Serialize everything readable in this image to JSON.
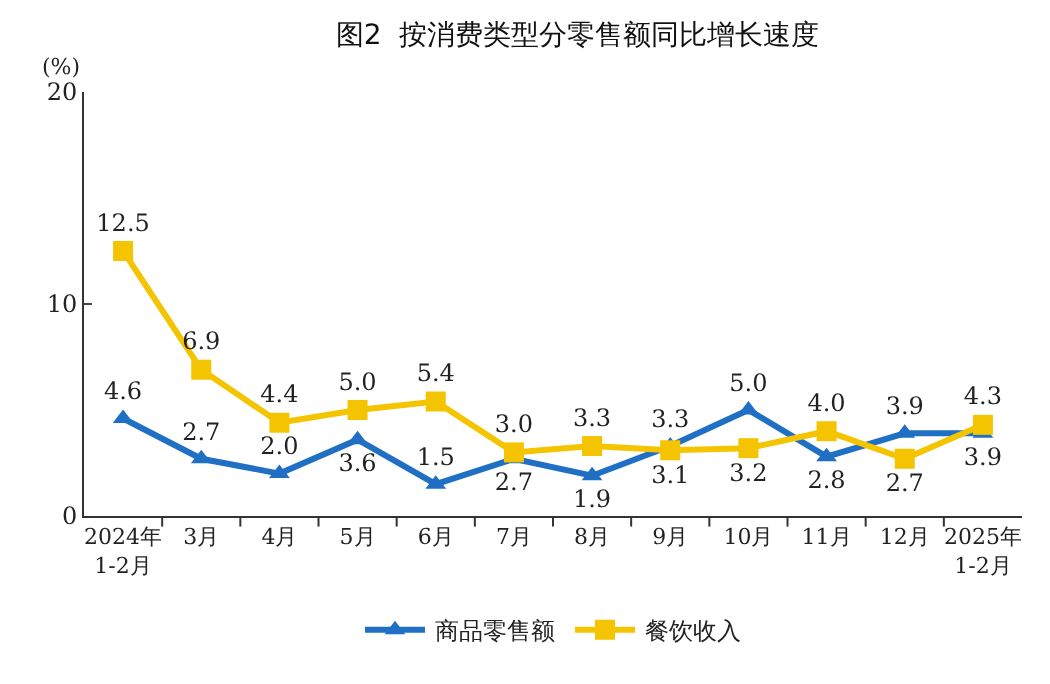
{
  "chart_data": {
    "type": "line",
    "title": "图2  按消费类型分零售额同比增长速度",
    "ylabel": "(%)",
    "categories": [
      "2024年\n1-2月",
      "3月",
      "4月",
      "5月",
      "6月",
      "7月",
      "8月",
      "9月",
      "10月",
      "11月",
      "12月",
      "2025年\n1-2月"
    ],
    "series": [
      {
        "name": "商品零售额",
        "color": "#1f6fc5",
        "marker": "triangle",
        "values": [
          4.6,
          2.7,
          2.0,
          3.6,
          1.5,
          2.7,
          1.9,
          3.3,
          5.0,
          2.8,
          3.9,
          3.9
        ],
        "value_labels": [
          "4.6",
          "2.7",
          "2.0",
          "3.6",
          "1.5",
          "2.7",
          "1.9",
          "3.3",
          "5.0",
          "2.8",
          "3.9",
          "3.9"
        ]
      },
      {
        "name": "餐饮收入",
        "color": "#f5c400",
        "marker": "square",
        "values": [
          12.5,
          6.9,
          4.4,
          5.0,
          5.4,
          3.0,
          3.3,
          3.1,
          3.2,
          4.0,
          2.7,
          4.3
        ],
        "value_labels": [
          "12.5",
          "6.9",
          "4.4",
          "5.0",
          "5.4",
          "3.0",
          "3.3",
          "3.1",
          "3.2",
          "4.0",
          "2.7",
          "4.3"
        ]
      }
    ],
    "ylim": [
      0,
      20
    ],
    "yticks": [
      0,
      10,
      20
    ],
    "grid": false,
    "legend": "bottom",
    "line_style": "solid"
  }
}
